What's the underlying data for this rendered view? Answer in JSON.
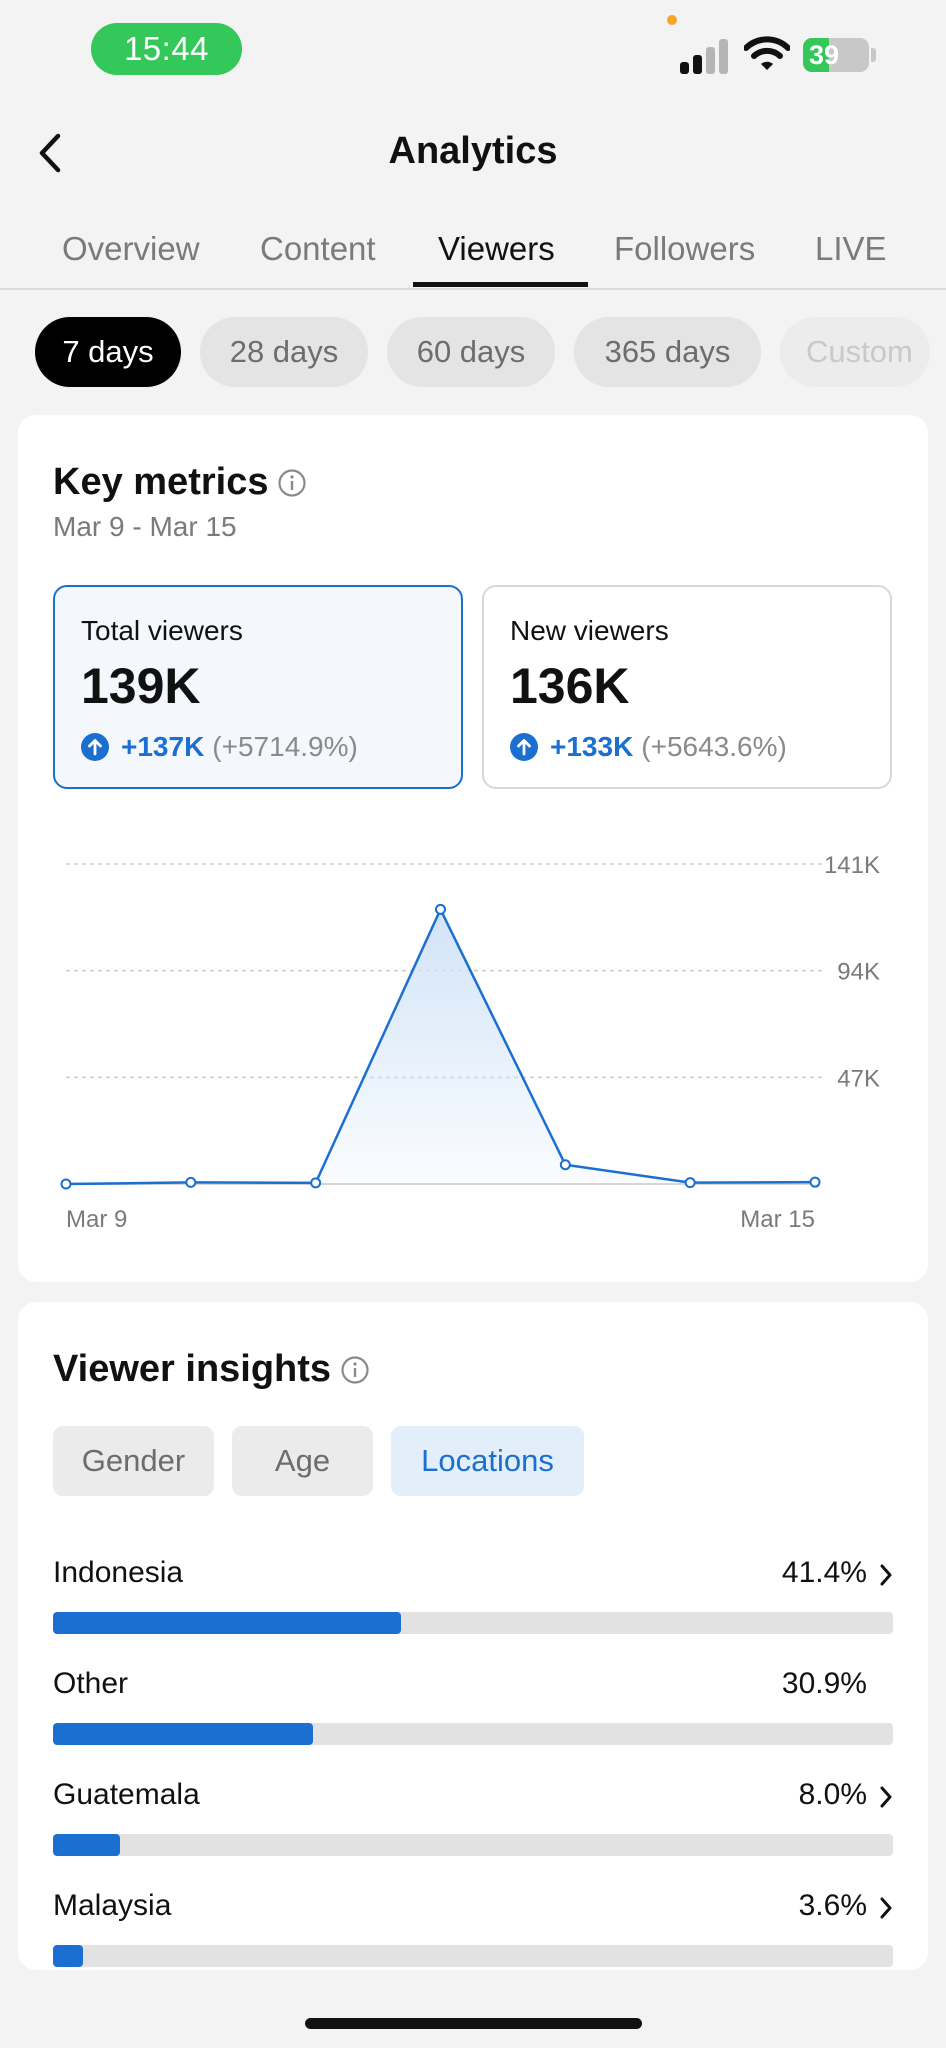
{
  "status_bar": {
    "time": "15:44",
    "battery_percent": "39",
    "battery_level": 0.39,
    "icons": [
      "signal-icon",
      "wifi-icon",
      "battery-icon"
    ]
  },
  "header": {
    "title": "Analytics",
    "back_icon": "chevron-left-icon"
  },
  "tabs": [
    {
      "label": "Overview",
      "active": false
    },
    {
      "label": "Content",
      "active": false
    },
    {
      "label": "Viewers",
      "active": true
    },
    {
      "label": "Followers",
      "active": false
    },
    {
      "label": "LIVE",
      "active": false
    }
  ],
  "ranges": [
    {
      "label": "7 days",
      "active": true
    },
    {
      "label": "28 days",
      "active": false
    },
    {
      "label": "60 days",
      "active": false
    },
    {
      "label": "365 days",
      "active": false
    },
    {
      "label": "Custom",
      "active": false
    }
  ],
  "key_metrics": {
    "title": "Key metrics",
    "date_range": "Mar 9 - Mar 15",
    "metrics": [
      {
        "label": "Total viewers",
        "value": "139K",
        "change": "+137K",
        "change_pct": "(+5714.9%)",
        "selected": true
      },
      {
        "label": "New viewers",
        "value": "136K",
        "change": "+133K",
        "change_pct": "(+5643.6%)",
        "selected": false
      }
    ]
  },
  "chart_data": {
    "type": "area",
    "x": [
      "Mar 9",
      "Mar 10",
      "Mar 11",
      "Mar 12",
      "Mar 13",
      "Mar 14",
      "Mar 15"
    ],
    "x_tick_labels": [
      "Mar 9",
      "Mar 15"
    ],
    "series": [
      {
        "values": [
          0,
          700,
          500,
          121000,
          8500,
          600,
          800
        ]
      }
    ],
    "y_ticks": [
      47000,
      94000,
      141000
    ],
    "y_tick_labels": [
      "47K",
      "94K",
      "141K"
    ],
    "ylim": [
      0,
      141000
    ],
    "grid": true,
    "colors": {
      "line": "#1a6fd1",
      "fill": "#cfe2f7"
    }
  },
  "viewer_insights": {
    "title": "Viewer insights",
    "filters": [
      {
        "label": "Gender",
        "active": false
      },
      {
        "label": "Age",
        "active": false
      },
      {
        "label": "Locations",
        "active": true
      }
    ],
    "locations": [
      {
        "name": "Indonesia",
        "pct": "41.4%",
        "fraction": 0.414,
        "chevron": true
      },
      {
        "name": "Other",
        "pct": "30.9%",
        "fraction": 0.309,
        "chevron": false
      },
      {
        "name": "Guatemala",
        "pct": "8.0%",
        "fraction": 0.08,
        "chevron": true
      },
      {
        "name": "Malaysia",
        "pct": "3.6%",
        "fraction": 0.036,
        "chevron": true
      }
    ]
  },
  "colors": {
    "accent": "#1a6fd1",
    "status_green": "#34c759"
  }
}
